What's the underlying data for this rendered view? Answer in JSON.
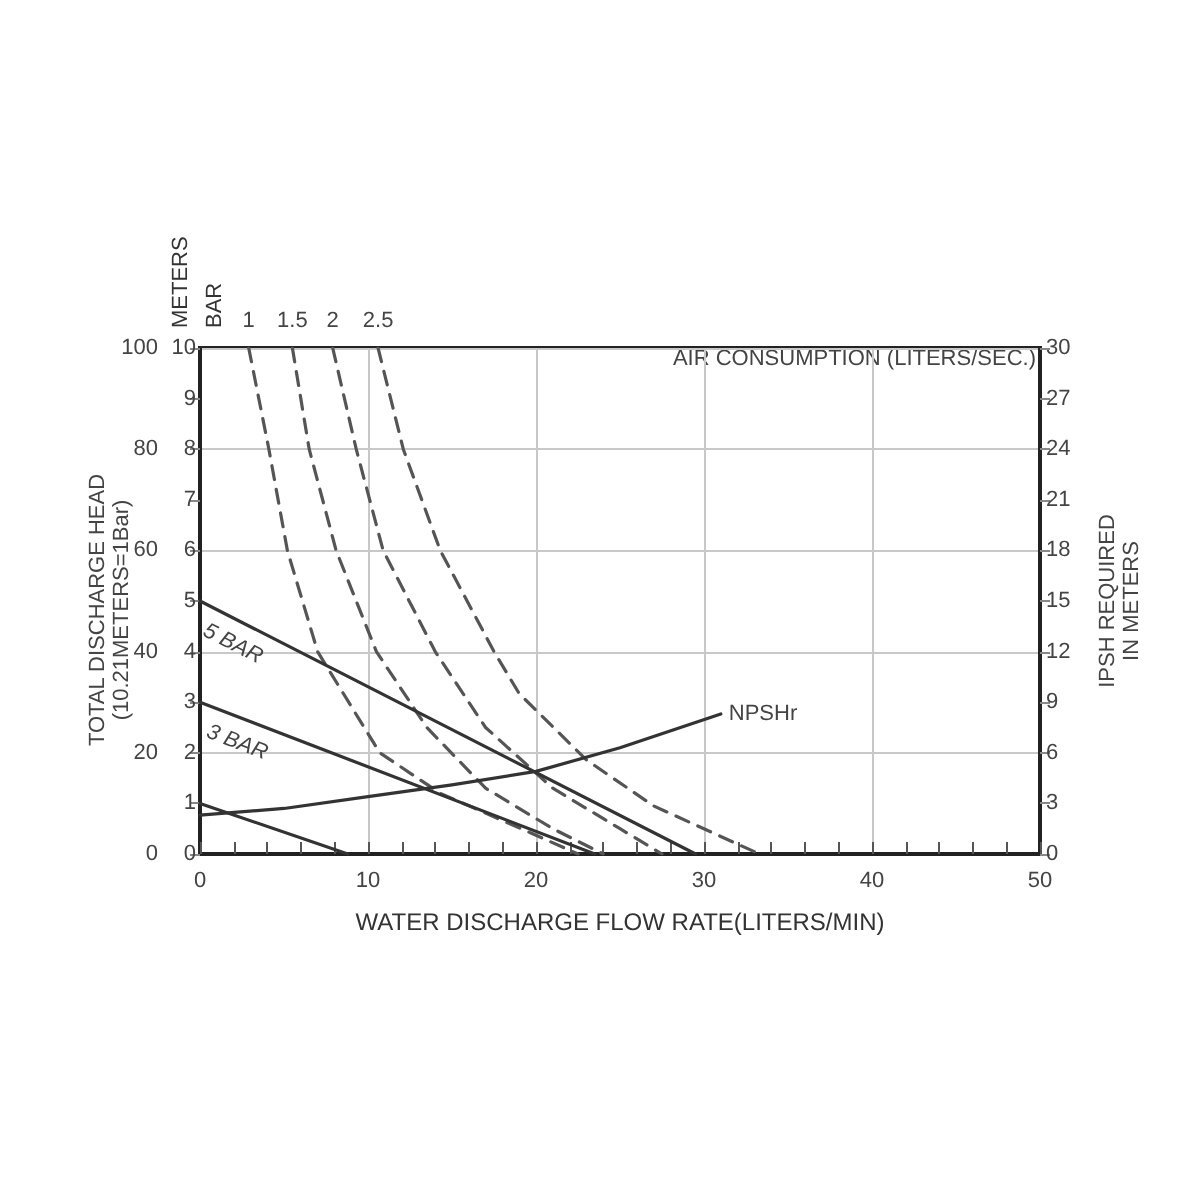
{
  "chart_data": {
    "type": "line",
    "xlabel": "WATER DISCHARGE FLOW RATE(LITERS/MIN)",
    "ylabel": "METERS",
    "y3label": "BAR",
    "y2label": "IPSH REQUIRED\nIN METERS",
    "annotations": [
      "TOTAL DISCHARGE HEAD\n(10.21METERS=1Bar)",
      "AIR CONSUMPTION (LITERS/SEC.)"
    ],
    "xlim": [
      0,
      50
    ],
    "xticks": [
      0,
      {
        "value": 2,
        "label": null
      },
      {
        "value": 4,
        "label": null
      },
      {
        "value": 6,
        "label": null
      },
      {
        "value": 8,
        "label": null
      },
      10,
      {
        "value": 12,
        "label": null
      },
      {
        "value": 14,
        "label": null
      },
      {
        "value": 16,
        "label": null
      },
      {
        "value": 18,
        "label": null
      },
      20,
      {
        "value": 22,
        "label": null
      },
      {
        "value": 24,
        "label": null
      },
      {
        "value": 26,
        "label": null
      },
      {
        "value": 28,
        "label": null
      },
      30,
      {
        "value": 32,
        "label": null
      },
      {
        "value": 34,
        "label": null
      },
      {
        "value": 36,
        "label": null
      },
      {
        "value": 38,
        "label": null
      },
      40,
      {
        "value": 42,
        "label": null
      },
      {
        "value": 44,
        "label": null
      },
      {
        "value": 46,
        "label": null
      },
      {
        "value": 48,
        "label": null
      },
      50
    ],
    "ylim": [
      0,
      100
    ],
    "yticks": [
      0,
      {
        "value": 10,
        "label": null
      },
      20,
      {
        "value": 30,
        "label": null
      },
      40,
      {
        "value": 50,
        "label": null
      },
      60,
      {
        "value": 70,
        "label": null
      },
      80,
      {
        "value": 90,
        "label": null
      },
      100
    ],
    "y3lim": [
      0,
      10
    ],
    "y3ticks": [
      0,
      1,
      2,
      3,
      4,
      5,
      6,
      7,
      8,
      9,
      10
    ],
    "y2lim": [
      0,
      30
    ],
    "y2ticks": [
      0,
      3,
      6,
      9,
      12,
      15,
      18,
      21,
      24,
      27,
      30
    ],
    "grid": true,
    "legend": false,
    "marker": "none",
    "series": [
      {
        "name": "5 BAR",
        "color": "#333333",
        "line_style": "solid",
        "x": [
          0,
          29.5
        ],
        "values": [
          50,
          0
        ]
      },
      {
        "name": "3 BAR",
        "color": "#333333",
        "line_style": "solid",
        "x": [
          0,
          23.5
        ],
        "values": [
          30,
          0
        ]
      },
      {
        "color": "#333333",
        "line_style": "solid",
        "x": [
          0,
          8.8
        ],
        "values": [
          10,
          0
        ]
      },
      {
        "name": "NPSHr",
        "color": "#333333",
        "line_style": "solid",
        "axis": "y2",
        "x": [
          0,
          5,
          10,
          15,
          20,
          25,
          31
        ],
        "values": [
          2.3,
          2.7,
          3.4,
          4.1,
          4.9,
          6.3,
          8.3
        ]
      },
      {
        "name": "1",
        "color": "#555555",
        "line_style": "dashed",
        "x": [
          2.9,
          4.1,
          5.2,
          7.0,
          10.7,
          14.3,
          19.8,
          22.5
        ],
        "values": [
          100,
          80,
          60,
          40,
          20,
          12,
          4,
          0
        ]
      },
      {
        "name": "1.5",
        "color": "#555555",
        "line_style": "dashed",
        "x": [
          5.5,
          6.5,
          8.1,
          10.5,
          13.5,
          17,
          21,
          24
        ],
        "values": [
          100,
          80,
          60,
          40,
          25,
          13,
          5,
          0
        ]
      },
      {
        "name": "2",
        "color": "#555555",
        "line_style": "dashed",
        "x": [
          7.9,
          9.3,
          10.9,
          14,
          17,
          21,
          25,
          27.5
        ],
        "values": [
          100,
          80,
          60,
          40,
          25,
          13,
          5,
          0
        ]
      },
      {
        "name": "2.5",
        "color": "#555555",
        "line_style": "dashed",
        "x": [
          10.6,
          12.1,
          14.3,
          17.5,
          19,
          23,
          27,
          33.3
        ],
        "values": [
          100,
          80,
          60,
          40,
          31.7,
          18.6,
          9.5,
          0
        ]
      }
    ]
  }
}
